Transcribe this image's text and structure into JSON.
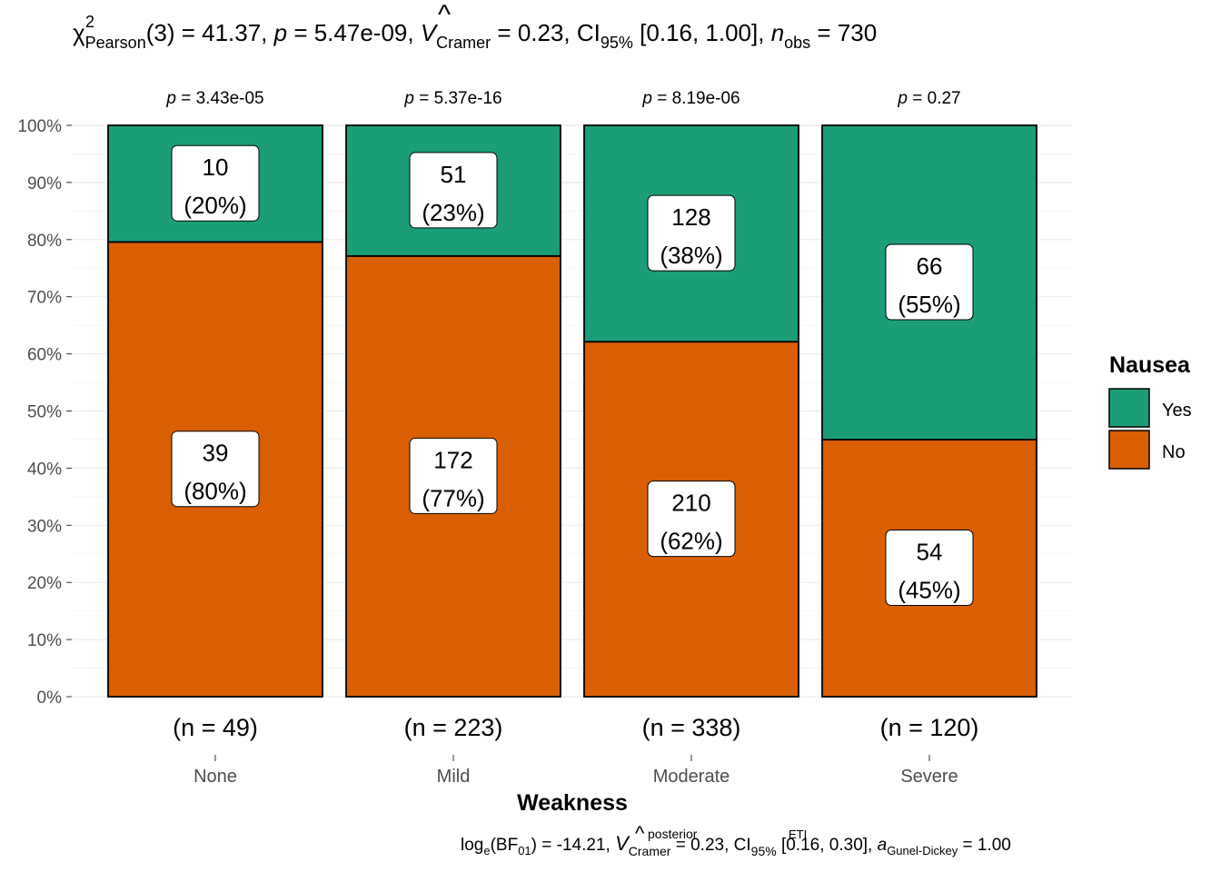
{
  "chart_data": {
    "type": "bar",
    "stacked": true,
    "percent_scale": true,
    "title_parts": {
      "chi": "χ",
      "chi_sup": "2",
      "chi_sub": "Pearson",
      "stat": "(3) = 41.37, ",
      "p_sym": "p",
      "p_val": " = 5.47e-09, ",
      "v_sym": "V",
      "v_hat": "^",
      "v_sub": "Cramer",
      "v_val": " = 0.23, CI",
      "ci_sub": "95%",
      "ci_val": " [0.16, 1.00], ",
      "n_sym": "n",
      "n_sub": "obs",
      "n_val": " = 730"
    },
    "subtitle_parts": {
      "log": "log",
      "log_sub": "e",
      "bf": "(BF",
      "bf_sub": "01",
      "bf_val": ") = -14.21, ",
      "v_sym": "V",
      "v_hat": "^",
      "v_sup": "posterior",
      "v_sub": "Cramer",
      "v_val": " = 0.23, CI",
      "ci_sup": "ETI",
      "ci_sub": "95%",
      "ci_val": " [0.16, 0.30], ",
      "a_sym": "a",
      "a_sub": "Gunel-Dickey",
      "a_val": " = 1.00"
    },
    "xlabel": "Weakness",
    "categories": [
      "None",
      "Mild",
      "Moderate",
      "Severe"
    ],
    "category_p_values": [
      "3.43e-05",
      "5.37e-16",
      "8.19e-06",
      "0.27"
    ],
    "p_symbol": "p",
    "category_n_labels": [
      "(n = 49)",
      "(n = 223)",
      "(n = 338)",
      "(n = 120)"
    ],
    "y_ticks": [
      "0%",
      "10%",
      "20%",
      "30%",
      "40%",
      "50%",
      "60%",
      "70%",
      "80%",
      "90%",
      "100%"
    ],
    "ylim": [
      0,
      1
    ],
    "series": [
      {
        "name": "No",
        "color": "#D95F02",
        "counts": [
          39,
          172,
          210,
          54
        ],
        "proportions": [
          0.7959,
          0.7713,
          0.6213,
          0.45
        ],
        "labels": [
          "(80%)",
          "(77%)",
          "(62%)",
          "(45%)"
        ]
      },
      {
        "name": "Yes",
        "color": "#1B9E77",
        "counts": [
          10,
          51,
          128,
          66
        ],
        "proportions": [
          0.2041,
          0.2287,
          0.3787,
          0.55
        ],
        "labels": [
          "(20%)",
          "(23%)",
          "(38%)",
          "(55%)"
        ]
      }
    ],
    "legend": {
      "title": "Nausea",
      "entries": [
        "Yes",
        "No"
      ],
      "position": "right"
    },
    "grid": true
  }
}
